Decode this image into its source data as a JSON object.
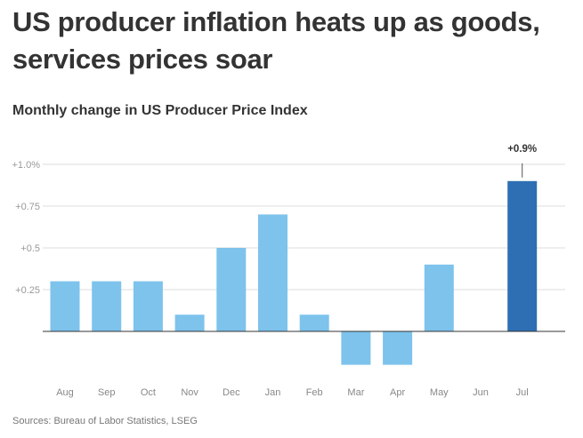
{
  "title": "US producer inflation heats up as goods, services prices soar",
  "subtitle": "Monthly change in US Producer Price Index",
  "source": "Sources: Bureau of Labor Statistics, LSEG",
  "chart_data": {
    "type": "bar",
    "categories": [
      "Aug",
      "Sep",
      "Oct",
      "Nov",
      "Dec",
      "Jan",
      "Feb",
      "Mar",
      "Apr",
      "May",
      "Jun",
      "Jul"
    ],
    "values": [
      0.3,
      0.3,
      0.3,
      0.1,
      0.5,
      0.7,
      0.1,
      -0.2,
      -0.2,
      0.4,
      0,
      0.9
    ],
    "ylim": [
      -0.2,
      1.0
    ],
    "yticks": [
      0.25,
      0.5,
      0.75,
      1.0
    ],
    "ytick_labels": [
      "+0.25",
      "+0.5",
      "+0.75",
      "+1.0%"
    ],
    "annotation": {
      "category": "Jul",
      "text": "+0.9%"
    },
    "grid": true,
    "colors": {
      "bar": "#7dc3ec",
      "highlight": "#2e6fb4"
    }
  }
}
